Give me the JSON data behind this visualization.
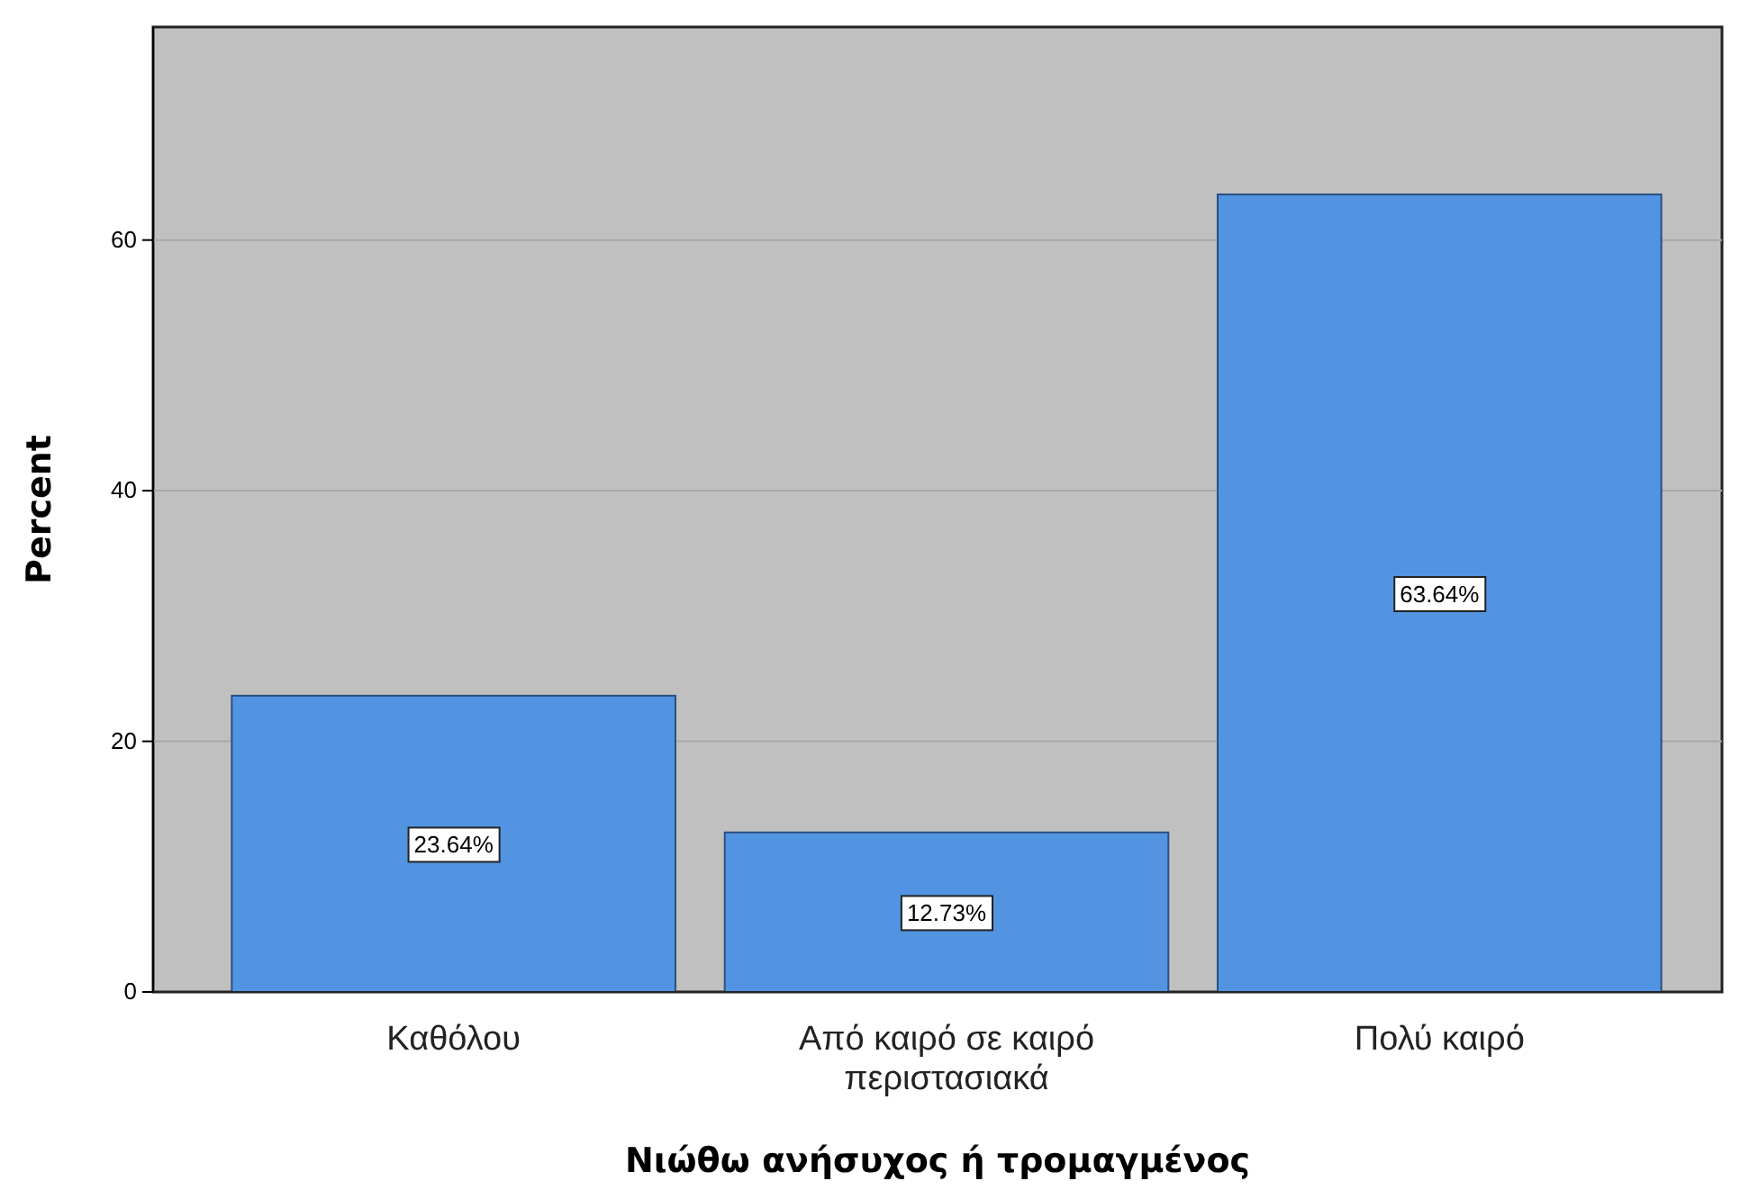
{
  "chart_data": {
    "type": "bar",
    "xlabel": "Νιώθω ανήσυχος ή τρομαγμένος",
    "ylabel": "Percent",
    "categories": [
      "Καθόλου",
      "Από καιρό σε καιρό περιστασιακά",
      "Πολύ καιρό"
    ],
    "values": [
      23.64,
      12.73,
      63.64
    ],
    "value_labels": [
      "23.64%",
      "12.73%",
      "63.64%"
    ],
    "color": "#5294e2",
    "ylim": [
      0,
      77
    ],
    "yticks": [
      0,
      20,
      40,
      60
    ],
    "grid": "y"
  }
}
